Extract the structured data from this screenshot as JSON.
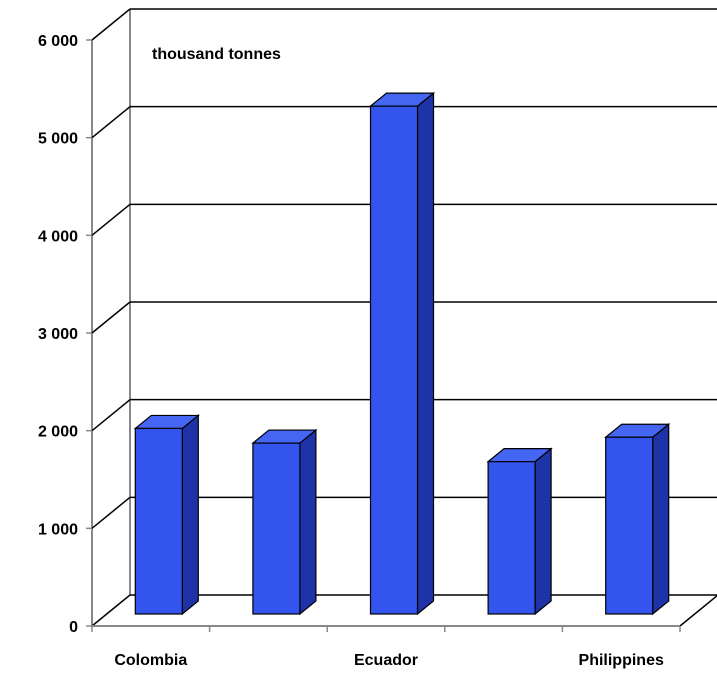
{
  "chart_data": {
    "type": "bar",
    "unit_label": "thousand tonnes",
    "categories": [
      "Colombia",
      "",
      "Ecuador",
      "",
      "Philippines"
    ],
    "values": [
      1900,
      1750,
      5200,
      1560,
      1810
    ],
    "ylim": [
      0,
      6000
    ],
    "yticks": [
      0,
      1000,
      2000,
      3000,
      4000,
      5000,
      6000
    ],
    "ytick_labels": [
      "0",
      "1 000",
      "2 000",
      "3 000",
      "4 000",
      "5 000",
      "6 000"
    ],
    "grid": true,
    "bar_color": "#3355ee",
    "bar_side_color": "#1e33a8",
    "bar_top_color": "#4466f2"
  }
}
